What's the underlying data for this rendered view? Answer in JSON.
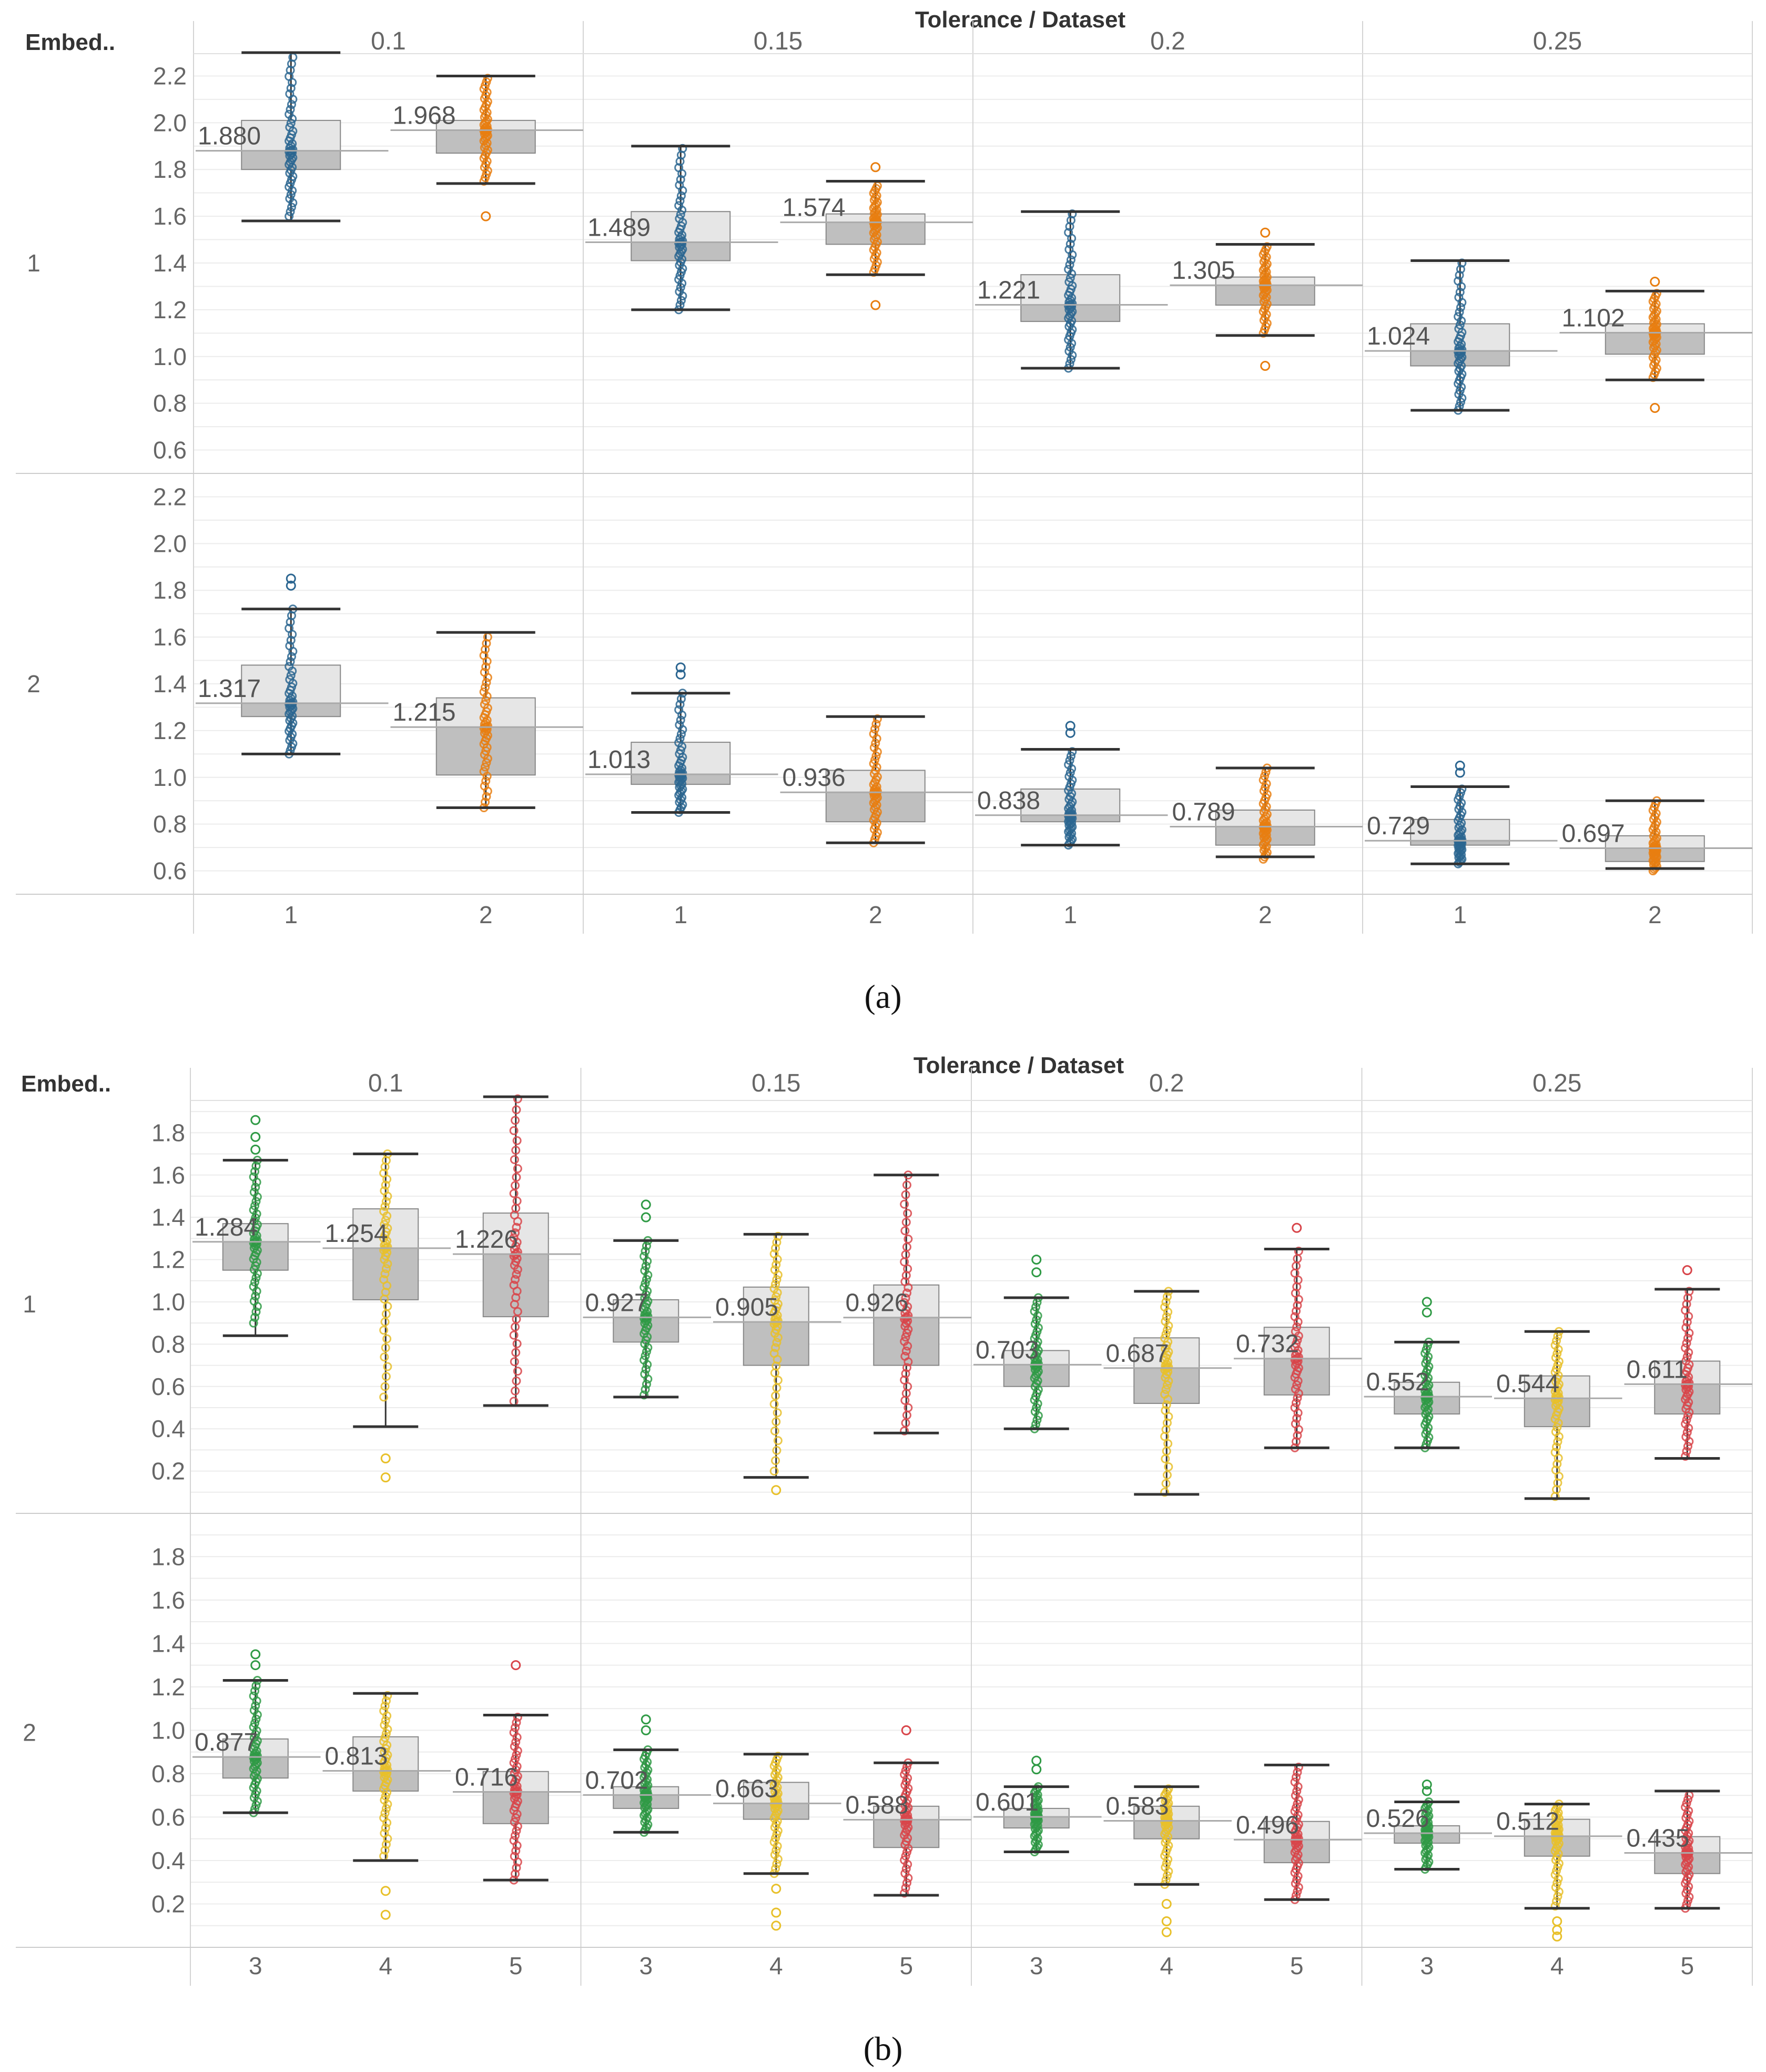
{
  "figure": {
    "caption_a": "(a)",
    "caption_b": "(b)",
    "column_header_title": "Tolerance / Dataset",
    "row_header_title": "Embed..",
    "colors": {
      "1": "#2c6691",
      "2": "#e87e10",
      "3": "#2f9a45",
      "4": "#e8c02a",
      "5": "#d8454a",
      "box_upper": "#e6e6e6",
      "box_lower": "#bfbfbf",
      "grid": "#ececec",
      "axis_text": "#666666"
    }
  },
  "chart_data": [
    {
      "id": "a",
      "type": "box",
      "title": "Tolerance / Dataset",
      "row_label_title": "Embed..",
      "tolerances": [
        "0.1",
        "0.15",
        "0.2",
        "0.25"
      ],
      "datasets": [
        "1",
        "2"
      ],
      "embeddings": [
        "1",
        "2"
      ],
      "yticks": [
        "2.2",
        "2.0",
        "1.8",
        "1.6",
        "1.4",
        "1.2",
        "1.0",
        "0.8",
        "0.6"
      ],
      "ylim": [
        0.5,
        2.3
      ],
      "boxes": [
        {
          "emb": "1",
          "tol": "0.1",
          "ds": "1",
          "median": 1.88,
          "median_label": "1.880",
          "q1": 1.8,
          "q3": 2.01,
          "wlo": 1.58,
          "whi": 2.3,
          "pmin": 1.6,
          "pmax": 2.28,
          "outliers": []
        },
        {
          "emb": "1",
          "tol": "0.1",
          "ds": "2",
          "median": 1.968,
          "median_label": "1.968",
          "q1": 1.87,
          "q3": 2.01,
          "wlo": 1.74,
          "whi": 2.2,
          "pmin": 1.75,
          "pmax": 2.19,
          "outliers": [
            1.6
          ]
        },
        {
          "emb": "1",
          "tol": "0.15",
          "ds": "1",
          "median": 1.489,
          "median_label": "1.489",
          "q1": 1.41,
          "q3": 1.62,
          "wlo": 1.2,
          "whi": 1.9,
          "pmin": 1.2,
          "pmax": 1.89,
          "outliers": []
        },
        {
          "emb": "1",
          "tol": "0.15",
          "ds": "2",
          "median": 1.574,
          "median_label": "1.574",
          "q1": 1.48,
          "q3": 1.61,
          "wlo": 1.35,
          "whi": 1.75,
          "pmin": 1.36,
          "pmax": 1.73,
          "outliers": [
            1.22,
            1.81
          ]
        },
        {
          "emb": "1",
          "tol": "0.2",
          "ds": "1",
          "median": 1.221,
          "median_label": "1.221",
          "q1": 1.15,
          "q3": 1.35,
          "wlo": 0.95,
          "whi": 1.62,
          "pmin": 0.95,
          "pmax": 1.61,
          "outliers": []
        },
        {
          "emb": "1",
          "tol": "0.2",
          "ds": "2",
          "median": 1.305,
          "median_label": "1.305",
          "q1": 1.22,
          "q3": 1.34,
          "wlo": 1.09,
          "whi": 1.48,
          "pmin": 1.1,
          "pmax": 1.47,
          "outliers": [
            0.96,
            1.53
          ]
        },
        {
          "emb": "1",
          "tol": "0.25",
          "ds": "1",
          "median": 1.024,
          "median_label": "1.024",
          "q1": 0.96,
          "q3": 1.14,
          "wlo": 0.77,
          "whi": 1.41,
          "pmin": 0.77,
          "pmax": 1.4,
          "outliers": []
        },
        {
          "emb": "1",
          "tol": "0.25",
          "ds": "2",
          "median": 1.102,
          "median_label": "1.102",
          "q1": 1.01,
          "q3": 1.14,
          "wlo": 0.9,
          "whi": 1.28,
          "pmin": 0.91,
          "pmax": 1.27,
          "outliers": [
            0.78,
            1.32
          ]
        },
        {
          "emb": "2",
          "tol": "0.1",
          "ds": "1",
          "median": 1.317,
          "median_label": "1.317",
          "q1": 1.26,
          "q3": 1.48,
          "wlo": 1.1,
          "whi": 1.72,
          "pmin": 1.1,
          "pmax": 1.72,
          "outliers": [
            1.82,
            1.85
          ]
        },
        {
          "emb": "2",
          "tol": "0.1",
          "ds": "2",
          "median": 1.215,
          "median_label": "1.215",
          "q1": 1.01,
          "q3": 1.34,
          "wlo": 0.87,
          "whi": 1.62,
          "pmin": 0.87,
          "pmax": 1.6,
          "outliers": []
        },
        {
          "emb": "2",
          "tol": "0.15",
          "ds": "1",
          "median": 1.013,
          "median_label": "1.013",
          "q1": 0.97,
          "q3": 1.15,
          "wlo": 0.85,
          "whi": 1.36,
          "pmin": 0.85,
          "pmax": 1.36,
          "outliers": [
            1.44,
            1.47
          ]
        },
        {
          "emb": "2",
          "tol": "0.15",
          "ds": "2",
          "median": 0.936,
          "median_label": "0.936",
          "q1": 0.81,
          "q3": 1.03,
          "wlo": 0.72,
          "whi": 1.26,
          "pmin": 0.72,
          "pmax": 1.25,
          "outliers": []
        },
        {
          "emb": "2",
          "tol": "0.2",
          "ds": "1",
          "median": 0.838,
          "median_label": "0.838",
          "q1": 0.81,
          "q3": 0.95,
          "wlo": 0.71,
          "whi": 1.12,
          "pmin": 0.71,
          "pmax": 1.11,
          "outliers": [
            1.19,
            1.22
          ]
        },
        {
          "emb": "2",
          "tol": "0.2",
          "ds": "2",
          "median": 0.789,
          "median_label": "0.789",
          "q1": 0.71,
          "q3": 0.86,
          "wlo": 0.66,
          "whi": 1.04,
          "pmin": 0.65,
          "pmax": 1.04,
          "outliers": []
        },
        {
          "emb": "2",
          "tol": "0.25",
          "ds": "1",
          "median": 0.729,
          "median_label": "0.729",
          "q1": 0.71,
          "q3": 0.82,
          "wlo": 0.63,
          "whi": 0.96,
          "pmin": 0.63,
          "pmax": 0.95,
          "outliers": [
            1.02,
            1.05
          ]
        },
        {
          "emb": "2",
          "tol": "0.25",
          "ds": "2",
          "median": 0.697,
          "median_label": "0.697",
          "q1": 0.64,
          "q3": 0.75,
          "wlo": 0.61,
          "whi": 0.9,
          "pmin": 0.6,
          "pmax": 0.9,
          "outliers": []
        }
      ]
    },
    {
      "id": "b",
      "type": "box",
      "title": "Tolerance / Dataset",
      "row_label_title": "Embed..",
      "tolerances": [
        "0.1",
        "0.15",
        "0.2",
        "0.25"
      ],
      "datasets": [
        "3",
        "4",
        "5"
      ],
      "embeddings": [
        "1",
        "2"
      ],
      "yticks": [
        "1.8",
        "1.6",
        "1.4",
        "1.2",
        "1.0",
        "0.8",
        "0.6",
        "0.4",
        "0.2"
      ],
      "ylim": [
        0.0,
        1.98
      ],
      "boxes": [
        {
          "emb": "1",
          "tol": "0.1",
          "ds": "3",
          "median": 1.284,
          "median_label": "1.284",
          "q1": 1.15,
          "q3": 1.37,
          "wlo": 0.84,
          "whi": 1.67,
          "pmin": 0.9,
          "pmax": 1.67,
          "outliers": [
            1.72,
            1.78,
            1.86
          ]
        },
        {
          "emb": "1",
          "tol": "0.1",
          "ds": "4",
          "median": 1.254,
          "median_label": "1.254",
          "q1": 1.01,
          "q3": 1.44,
          "wlo": 0.41,
          "whi": 1.7,
          "pmin": 0.55,
          "pmax": 1.7,
          "outliers": [
            0.26,
            0.17
          ]
        },
        {
          "emb": "1",
          "tol": "0.1",
          "ds": "5",
          "median": 1.226,
          "median_label": "1.226",
          "q1": 0.93,
          "q3": 1.42,
          "wlo": 0.51,
          "whi": 1.97,
          "pmin": 0.53,
          "pmax": 1.96,
          "outliers": []
        },
        {
          "emb": "1",
          "tol": "0.15",
          "ds": "3",
          "median": 0.927,
          "median_label": "0.927",
          "q1": 0.81,
          "q3": 1.01,
          "wlo": 0.55,
          "whi": 1.29,
          "pmin": 0.56,
          "pmax": 1.29,
          "outliers": [
            1.4,
            1.46
          ]
        },
        {
          "emb": "1",
          "tol": "0.15",
          "ds": "4",
          "median": 0.905,
          "median_label": "0.905",
          "q1": 0.7,
          "q3": 1.07,
          "wlo": 0.17,
          "whi": 1.32,
          "pmin": 0.2,
          "pmax": 1.31,
          "outliers": [
            0.11
          ]
        },
        {
          "emb": "1",
          "tol": "0.15",
          "ds": "5",
          "median": 0.926,
          "median_label": "0.926",
          "q1": 0.7,
          "q3": 1.08,
          "wlo": 0.38,
          "whi": 1.6,
          "pmin": 0.39,
          "pmax": 1.6,
          "outliers": []
        },
        {
          "emb": "1",
          "tol": "0.2",
          "ds": "3",
          "median": 0.703,
          "median_label": "0.703",
          "q1": 0.6,
          "q3": 0.77,
          "wlo": 0.4,
          "whi": 1.02,
          "pmin": 0.4,
          "pmax": 1.02,
          "outliers": [
            1.14,
            1.2
          ]
        },
        {
          "emb": "1",
          "tol": "0.2",
          "ds": "4",
          "median": 0.687,
          "median_label": "0.687",
          "q1": 0.52,
          "q3": 0.83,
          "wlo": 0.09,
          "whi": 1.05,
          "pmin": 0.1,
          "pmax": 1.05,
          "outliers": []
        },
        {
          "emb": "1",
          "tol": "0.2",
          "ds": "5",
          "median": 0.732,
          "median_label": "0.732",
          "q1": 0.56,
          "q3": 0.88,
          "wlo": 0.31,
          "whi": 1.25,
          "pmin": 0.31,
          "pmax": 1.24,
          "outliers": [
            1.35
          ]
        },
        {
          "emb": "1",
          "tol": "0.25",
          "ds": "3",
          "median": 0.552,
          "median_label": "0.552",
          "q1": 0.47,
          "q3": 0.62,
          "wlo": 0.31,
          "whi": 0.81,
          "pmin": 0.31,
          "pmax": 0.81,
          "outliers": [
            0.95,
            1.0
          ]
        },
        {
          "emb": "1",
          "tol": "0.25",
          "ds": "4",
          "median": 0.544,
          "median_label": "0.544",
          "q1": 0.41,
          "q3": 0.65,
          "wlo": 0.07,
          "whi": 0.86,
          "pmin": 0.08,
          "pmax": 0.86,
          "outliers": []
        },
        {
          "emb": "1",
          "tol": "0.25",
          "ds": "5",
          "median": 0.611,
          "median_label": "0.611",
          "q1": 0.47,
          "q3": 0.72,
          "wlo": 0.26,
          "whi": 1.06,
          "pmin": 0.27,
          "pmax": 1.05,
          "outliers": [
            1.15
          ]
        },
        {
          "emb": "2",
          "tol": "0.1",
          "ds": "3",
          "median": 0.877,
          "median_label": "0.877",
          "q1": 0.78,
          "q3": 0.96,
          "wlo": 0.62,
          "whi": 1.23,
          "pmin": 0.62,
          "pmax": 1.23,
          "outliers": [
            1.3,
            1.35
          ]
        },
        {
          "emb": "2",
          "tol": "0.1",
          "ds": "4",
          "median": 0.813,
          "median_label": "0.813",
          "q1": 0.72,
          "q3": 0.97,
          "wlo": 0.4,
          "whi": 1.17,
          "pmin": 0.42,
          "pmax": 1.16,
          "outliers": [
            0.26,
            0.15
          ]
        },
        {
          "emb": "2",
          "tol": "0.1",
          "ds": "5",
          "median": 0.716,
          "median_label": "0.716",
          "q1": 0.57,
          "q3": 0.81,
          "wlo": 0.31,
          "whi": 1.07,
          "pmin": 0.31,
          "pmax": 1.06,
          "outliers": [
            1.3
          ]
        },
        {
          "emb": "2",
          "tol": "0.15",
          "ds": "3",
          "median": 0.702,
          "median_label": "0.702",
          "q1": 0.64,
          "q3": 0.74,
          "wlo": 0.53,
          "whi": 0.91,
          "pmin": 0.53,
          "pmax": 0.91,
          "outliers": [
            1.0,
            1.05
          ]
        },
        {
          "emb": "2",
          "tol": "0.15",
          "ds": "4",
          "median": 0.663,
          "median_label": "0.663",
          "q1": 0.59,
          "q3": 0.76,
          "wlo": 0.34,
          "whi": 0.89,
          "pmin": 0.34,
          "pmax": 0.88,
          "outliers": [
            0.27,
            0.16,
            0.1
          ]
        },
        {
          "emb": "2",
          "tol": "0.15",
          "ds": "5",
          "median": 0.588,
          "median_label": "0.588",
          "q1": 0.46,
          "q3": 0.65,
          "wlo": 0.24,
          "whi": 0.85,
          "pmin": 0.25,
          "pmax": 0.85,
          "outliers": [
            1.0
          ]
        },
        {
          "emb": "2",
          "tol": "0.2",
          "ds": "3",
          "median": 0.601,
          "median_label": "0.601",
          "q1": 0.55,
          "q3": 0.64,
          "wlo": 0.44,
          "whi": 0.74,
          "pmin": 0.44,
          "pmax": 0.74,
          "outliers": [
            0.82,
            0.86
          ]
        },
        {
          "emb": "2",
          "tol": "0.2",
          "ds": "4",
          "median": 0.583,
          "median_label": "0.583",
          "q1": 0.5,
          "q3": 0.65,
          "wlo": 0.29,
          "whi": 0.74,
          "pmin": 0.29,
          "pmax": 0.73,
          "outliers": [
            0.2,
            0.12,
            0.07
          ]
        },
        {
          "emb": "2",
          "tol": "0.2",
          "ds": "5",
          "median": 0.496,
          "median_label": "0.496",
          "q1": 0.39,
          "q3": 0.58,
          "wlo": 0.22,
          "whi": 0.84,
          "pmin": 0.22,
          "pmax": 0.83,
          "outliers": []
        },
        {
          "emb": "2",
          "tol": "0.25",
          "ds": "3",
          "median": 0.526,
          "median_label": "0.526",
          "q1": 0.48,
          "q3": 0.56,
          "wlo": 0.36,
          "whi": 0.67,
          "pmin": 0.36,
          "pmax": 0.67,
          "outliers": [
            0.72,
            0.75
          ]
        },
        {
          "emb": "2",
          "tol": "0.25",
          "ds": "4",
          "median": 0.512,
          "median_label": "0.512",
          "q1": 0.42,
          "q3": 0.59,
          "wlo": 0.18,
          "whi": 0.66,
          "pmin": 0.19,
          "pmax": 0.66,
          "outliers": [
            0.12,
            0.08,
            0.05
          ]
        },
        {
          "emb": "2",
          "tol": "0.25",
          "ds": "5",
          "median": 0.435,
          "median_label": "0.435",
          "q1": 0.34,
          "q3": 0.51,
          "wlo": 0.18,
          "whi": 0.72,
          "pmin": 0.18,
          "pmax": 0.7,
          "outliers": []
        }
      ]
    }
  ]
}
